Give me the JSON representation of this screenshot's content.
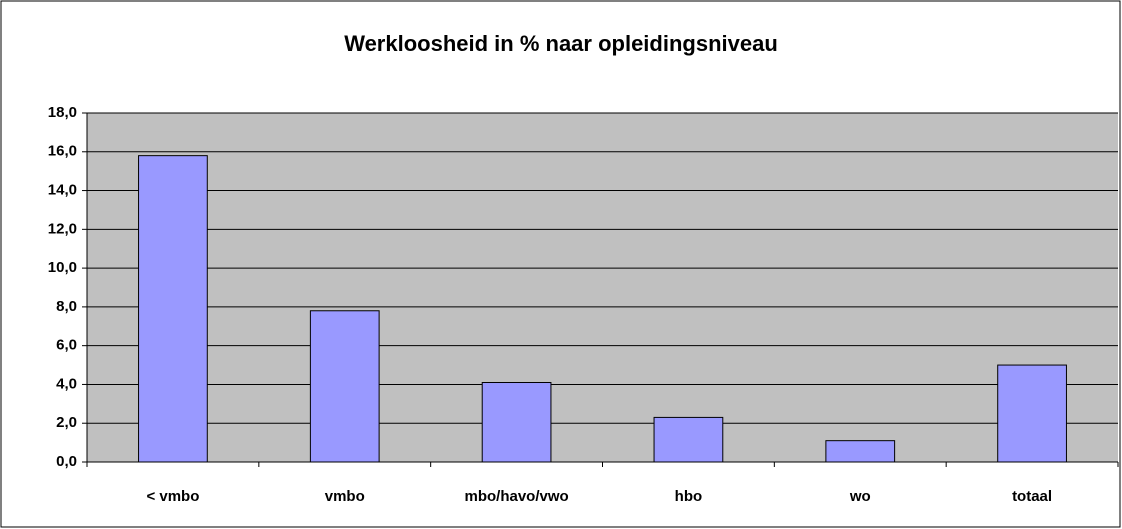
{
  "chart_data": {
    "type": "bar",
    "title": "Werkloosheid in % naar opleidingsniveau",
    "categories": [
      "< vmbo",
      "vmbo",
      "mbo/havo/vwo",
      "hbo",
      "wo",
      "totaal"
    ],
    "values": [
      15.8,
      7.8,
      4.1,
      2.3,
      1.1,
      5.0
    ],
    "color": "#9999ff",
    "ylim": [
      0,
      18
    ],
    "yticks": [
      {
        "value": 0,
        "label": "0,0"
      },
      {
        "value": 2,
        "label": "2,0"
      },
      {
        "value": 4,
        "label": "4,0"
      },
      {
        "value": 6,
        "label": "6,0"
      },
      {
        "value": 8,
        "label": "8,0"
      },
      {
        "value": 10,
        "label": "10,0"
      },
      {
        "value": 12,
        "label": "12,0"
      },
      {
        "value": 14,
        "label": "14,0"
      },
      {
        "value": 16,
        "label": "16,0"
      },
      {
        "value": 18,
        "label": "18,0"
      }
    ],
    "grid": true
  }
}
